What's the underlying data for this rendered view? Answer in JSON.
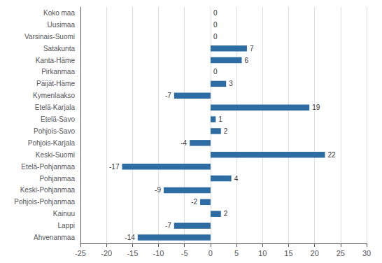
{
  "chart_data": {
    "type": "bar",
    "orientation": "horizontal",
    "categories": [
      "Koko maa",
      "Uusimaa",
      "Varsinais-Suomi",
      "Satakunta",
      "Kanta-Häme",
      "Pirkanmaa",
      "Päijät-Häme",
      "Kymenlaakso",
      "Etelä-Karjala",
      "Etelä-Savo",
      "Pohjois-Savo",
      "Pohjois-Karjala",
      "Keski-Suomi",
      "Etelä-Pohjanmaa",
      "Pohjanmaa",
      "Keski-Pohjanmaa",
      "Pohjois-Pohjanmaa",
      "Kainuu",
      "Lappi",
      "Ahvenanmaa"
    ],
    "values": [
      0,
      0,
      0,
      7,
      6,
      0,
      3,
      -7,
      19,
      1,
      2,
      -4,
      22,
      -17,
      4,
      -9,
      -2,
      2,
      -7,
      -14
    ],
    "color": "#2E6DA4",
    "xlim": [
      -25,
      30
    ],
    "xticks": [
      -25,
      -20,
      -15,
      -10,
      -5,
      0,
      5,
      10,
      15,
      20,
      25,
      30
    ],
    "grid": true,
    "data_labels": true
  }
}
